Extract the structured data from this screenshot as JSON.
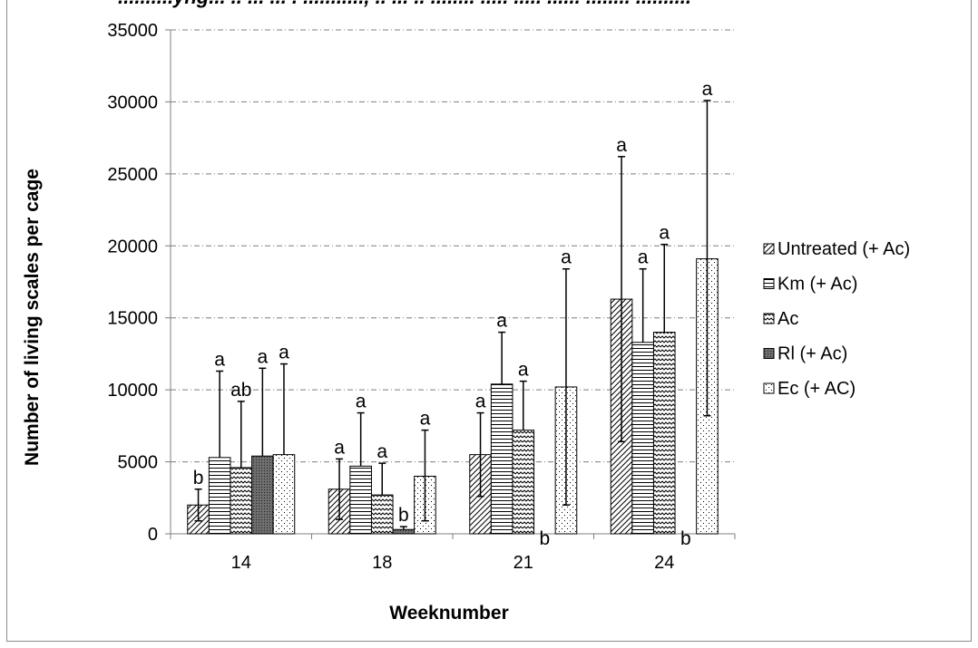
{
  "clipped_header_text": "..........yng... .. ... ... . ..........., .. ... .. ........ ..... ..... ...... ........ ..........",
  "chart_data": {
    "type": "bar",
    "title": "",
    "xlabel": "Weeknumber",
    "ylabel": "Number of living scales per cage",
    "ylim": [
      0,
      35000
    ],
    "yticks": [
      0,
      5000,
      10000,
      15000,
      20000,
      25000,
      30000,
      35000
    ],
    "grid": true,
    "legend_position": "right",
    "categories": [
      "14",
      "18",
      "21",
      "24"
    ],
    "series": [
      {
        "name": "Untreated (+ Ac)",
        "pattern": "diagonal",
        "values": [
          2000,
          3100,
          5500,
          16300
        ],
        "error_upper": [
          3100,
          5200,
          8400,
          26200
        ],
        "error_lower": [
          900,
          1000,
          2600,
          6400
        ],
        "sig": [
          "b",
          "a",
          "a",
          "a"
        ]
      },
      {
        "name": "Km (+ Ac)",
        "pattern": "horizontal",
        "values": [
          5300,
          4700,
          10400,
          13300
        ],
        "error_upper": [
          11300,
          8400,
          14000,
          18400
        ],
        "error_lower": null,
        "sig": [
          "a",
          "a",
          "a",
          "a"
        ]
      },
      {
        "name": "Ac",
        "pattern": "wave",
        "values": [
          4600,
          2700,
          7200,
          14000
        ],
        "error_upper": [
          9200,
          4900,
          10600,
          20100
        ],
        "error_lower": null,
        "sig": [
          "ab",
          "a",
          "a",
          "a"
        ]
      },
      {
        "name": "Rl (+ Ac)",
        "pattern": "dense",
        "values": [
          5400,
          300,
          0,
          0
        ],
        "error_upper": [
          11500,
          500,
          null,
          null
        ],
        "error_lower": null,
        "sig": [
          "a",
          "b",
          "b",
          "b"
        ]
      },
      {
        "name": "Ec (+ AC)",
        "pattern": "dots",
        "values": [
          5500,
          4000,
          10200,
          19100
        ],
        "error_upper": [
          11800,
          7200,
          18400,
          30100
        ],
        "error_lower": [
          null,
          900,
          2000,
          8200
        ],
        "sig": [
          "a",
          "a",
          "a",
          "a"
        ]
      }
    ]
  }
}
